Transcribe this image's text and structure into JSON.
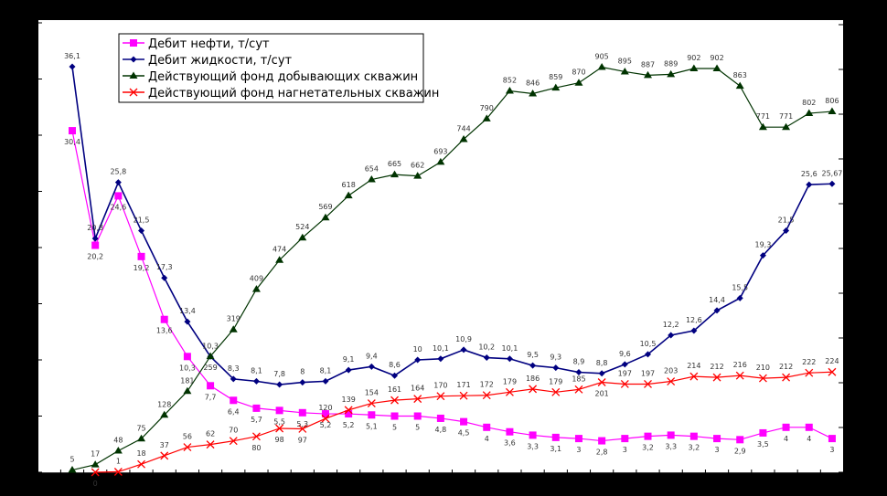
{
  "chart_data": {
    "type": "line",
    "title": "",
    "xlabel": "",
    "ylabel": "",
    "ylim": [
      0,
      40
    ],
    "y2lim": [
      0,
      1000
    ],
    "legend": "top-left",
    "grid": false,
    "series": [
      {
        "name": "Дебит нефти, т/сут",
        "axis": "left",
        "color": "#ff00ff",
        "marker": "square",
        "values": [
          30.4,
          20.2,
          24.6,
          19.2,
          13.6,
          10.3,
          7.7,
          6.4,
          5.7,
          5.5,
          5.3,
          5.2,
          5.2,
          5.1,
          5,
          5,
          4.8,
          4.5,
          4,
          3.6,
          3.3,
          3.1,
          3,
          2.8,
          3,
          3.2,
          3.3,
          3.2,
          3,
          2.9,
          3.5,
          4,
          4,
          3
        ],
        "labels": [
          "30,4",
          "20,2",
          "24,6",
          "19,2",
          "13,6",
          "10,3",
          "7,7",
          "6,4",
          "5,7",
          "5,5",
          "5,3",
          "5,2",
          "5,2",
          "5,1",
          "5",
          "5",
          "4,8",
          "4,5",
          "4",
          "3,6",
          "3,3",
          "3,1",
          "3",
          "2,8",
          "3",
          "3,2",
          "3,3",
          "3,2",
          "3",
          "2,9",
          "3,5",
          "4",
          "4",
          "3"
        ]
      },
      {
        "name": "Дебит жидкости, т/сут",
        "axis": "left",
        "color": "#000080",
        "marker": "diamond",
        "values": [
          36.1,
          20.8,
          25.8,
          21.5,
          17.3,
          13.4,
          10.3,
          8.3,
          8.1,
          7.8,
          8,
          8.1,
          9.1,
          9.4,
          8.6,
          10,
          10.1,
          10.9,
          10.2,
          10.1,
          9.5,
          9.3,
          8.9,
          8.8,
          9.6,
          10.5,
          12.2,
          12.6,
          14.4,
          15.5,
          19.3,
          21.5,
          25.6,
          25.67
        ],
        "labels": [
          "36,1",
          "20,8",
          "25,8",
          "21,5",
          "17,3",
          "13,4",
          "10,3",
          "8,3",
          "8,1",
          "7,8",
          "8",
          "8,1",
          "9,1",
          "9,4",
          "8,6",
          "10",
          "10,1",
          "10,9",
          "10,2",
          "10,1",
          "9,5",
          "9,3",
          "8,9",
          "8,8",
          "9,6",
          "10,5",
          "12,2",
          "12,6",
          "14,4",
          "15,5",
          "19,3",
          "21,5",
          "25,6",
          "25,67"
        ]
      },
      {
        "name": "Действующий фонд добывающих скважин",
        "axis": "right",
        "color": "#003300",
        "marker": "triangle",
        "values": [
          5,
          17,
          48,
          75,
          128,
          181,
          259,
          319,
          409,
          474,
          524,
          569,
          618,
          654,
          665,
          662,
          693,
          744,
          790,
          852,
          846,
          859,
          870,
          905,
          895,
          887,
          889,
          902,
          902,
          863,
          771,
          771,
          802,
          806
        ],
        "labels": [
          "5",
          "17",
          "48",
          "75",
          "128",
          "181",
          "259",
          "319",
          "409",
          "474",
          "524",
          "569",
          "618",
          "654",
          "665",
          "662",
          "693",
          "744",
          "790",
          "852",
          "846",
          "859",
          "870",
          "905",
          "895",
          "887",
          "889",
          "902",
          "902",
          "863",
          "771",
          "771",
          "802",
          "806"
        ]
      },
      {
        "name": "Действующий фонд нагнетательных скважин",
        "axis": "right",
        "color": "#ff0000",
        "marker": "x",
        "values": [
          null,
          0,
          1,
          18,
          37,
          56,
          62,
          70,
          80,
          98,
          97,
          120,
          139,
          154,
          161,
          164,
          170,
          171,
          172,
          179,
          186,
          179,
          185,
          201,
          197,
          197,
          203,
          214,
          212,
          216,
          210,
          212,
          222,
          224
        ],
        "labels": [
          "",
          "0",
          "1",
          "18",
          "37",
          "56",
          "62",
          "70",
          "80",
          "98",
          "97",
          "120",
          "139",
          "154",
          "161",
          "164",
          "170",
          "171",
          "172",
          "179",
          "186",
          "179",
          "185",
          "201",
          "197",
          "197",
          "203",
          "214",
          "212",
          "216",
          "210",
          "212",
          "222",
          "224"
        ]
      }
    ]
  }
}
